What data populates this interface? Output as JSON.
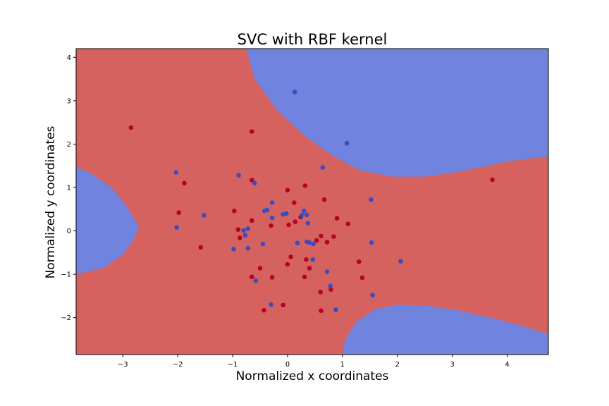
{
  "chart_data": {
    "type": "scatter",
    "title": "SVC with RBF kernel",
    "xlabel": "Normalized x coordinates",
    "ylabel": "Normalized y coordinates",
    "xlim": [
      -3.85,
      4.75
    ],
    "ylim": [
      -2.85,
      4.2
    ],
    "xticks": [
      -3,
      -2,
      -1,
      0,
      1,
      2,
      3,
      4
    ],
    "yticks": [
      -2,
      -1,
      0,
      1,
      2,
      3,
      4
    ],
    "grid": false,
    "legend": "none",
    "colors": {
      "class_0_region": "#d6625f",
      "class_1_region": "#7084df",
      "class_0_points": "#b40426",
      "class_1_points": "#3b4cc0"
    },
    "decision_regions": {
      "class_0": "red background region",
      "class_1": [
        {
          "boundary": [
            [
              -0.75,
              4.2
            ],
            [
              -0.6,
              3.5
            ],
            [
              -0.2,
              2.8
            ],
            [
              0.3,
              2.2
            ],
            [
              0.8,
              1.75
            ],
            [
              1.3,
              1.4
            ],
            [
              1.9,
              1.25
            ],
            [
              2.5,
              1.25
            ],
            [
              3.2,
              1.38
            ],
            [
              4.0,
              1.6
            ],
            [
              4.75,
              1.72
            ],
            [
              4.75,
              4.2
            ]
          ]
        },
        {
          "boundary": [
            [
              -3.85,
              1.48
            ],
            [
              -3.55,
              1.3
            ],
            [
              -3.2,
              1.0
            ],
            [
              -2.95,
              0.6
            ],
            [
              -2.8,
              0.3
            ],
            [
              -2.71,
              0.1
            ],
            [
              -2.8,
              -0.2
            ],
            [
              -3.0,
              -0.55
            ],
            [
              -3.35,
              -0.85
            ],
            [
              -3.85,
              -1.0
            ]
          ]
        },
        {
          "boundary": [
            [
              1.0,
              -2.85
            ],
            [
              1.05,
              -2.5
            ],
            [
              1.25,
              -2.1
            ],
            [
              1.6,
              -1.8
            ],
            [
              2.0,
              -1.7
            ],
            [
              2.5,
              -1.72
            ],
            [
              3.1,
              -1.83
            ],
            [
              3.8,
              -2.03
            ],
            [
              4.3,
              -2.2
            ],
            [
              4.75,
              -2.38
            ],
            [
              4.75,
              -2.85
            ]
          ]
        }
      ]
    },
    "series": [
      {
        "class": 0,
        "points": [
          [
            -2.85,
            2.38
          ],
          [
            -0.65,
            2.29
          ],
          [
            -1.88,
            1.1
          ],
          [
            -0.65,
            1.17
          ],
          [
            -1.98,
            0.42
          ],
          [
            -1.58,
            -0.38
          ],
          [
            -0.97,
            0.46
          ],
          [
            -0.9,
            0.03
          ],
          [
            -0.87,
            -0.16
          ],
          [
            -0.65,
            0.24
          ],
          [
            -0.5,
            -0.86
          ],
          [
            -0.43,
            -1.83
          ],
          [
            -0.3,
            0.12
          ],
          [
            -0.28,
            -1.07
          ],
          [
            -0.65,
            -1.06
          ],
          [
            -0.08,
            -1.71
          ],
          [
            0.0,
            0.94
          ],
          [
            0.02,
            0.14
          ],
          [
            0.0,
            -0.77
          ],
          [
            0.06,
            -0.6
          ],
          [
            0.12,
            0.65
          ],
          [
            0.14,
            0.21
          ],
          [
            0.24,
            0.32
          ],
          [
            0.32,
            1.04
          ],
          [
            0.31,
            -1.06
          ],
          [
            0.34,
            -0.66
          ],
          [
            0.4,
            -0.86
          ],
          [
            0.53,
            -0.22
          ],
          [
            0.61,
            -0.12
          ],
          [
            0.6,
            -1.41
          ],
          [
            0.61,
            -1.84
          ],
          [
            0.67,
            0.72
          ],
          [
            0.72,
            -0.26
          ],
          [
            0.79,
            -1.35
          ],
          [
            0.84,
            -0.13
          ],
          [
            0.9,
            0.29
          ],
          [
            1.1,
            0.16
          ],
          [
            1.3,
            -0.71
          ],
          [
            1.36,
            -1.08
          ],
          [
            3.73,
            1.18
          ]
        ]
      },
      {
        "class": 1,
        "points": [
          [
            0.13,
            3.2
          ],
          [
            1.08,
            2.02
          ],
          [
            -2.03,
            1.35
          ],
          [
            -0.89,
            1.28
          ],
          [
            -0.6,
            1.1
          ],
          [
            -1.52,
            0.36
          ],
          [
            -2.02,
            0.08
          ],
          [
            -0.8,
            0.01
          ],
          [
            -0.72,
            0.05
          ],
          [
            -0.77,
            -0.1
          ],
          [
            -0.72,
            -0.4
          ],
          [
            -0.98,
            -0.42
          ],
          [
            -0.45,
            -0.3
          ],
          [
            -0.42,
            0.46
          ],
          [
            -0.37,
            0.48
          ],
          [
            -0.28,
            0.65
          ],
          [
            -0.28,
            0.3
          ],
          [
            -0.08,
            0.38
          ],
          [
            -0.02,
            0.4
          ],
          [
            0.18,
            -0.28
          ],
          [
            0.26,
            0.36
          ],
          [
            0.3,
            0.46
          ],
          [
            0.35,
            0.37
          ],
          [
            0.37,
            0.18
          ],
          [
            0.35,
            -0.25
          ],
          [
            0.4,
            -0.27
          ],
          [
            0.47,
            -0.3
          ],
          [
            0.46,
            -0.66
          ],
          [
            0.64,
            1.46
          ],
          [
            0.72,
            -0.94
          ],
          [
            0.78,
            -1.27
          ],
          [
            0.88,
            -1.82
          ],
          [
            -0.3,
            -1.7
          ],
          [
            -0.58,
            -1.15
          ],
          [
            1.52,
            0.72
          ],
          [
            1.53,
            -0.27
          ],
          [
            1.55,
            -1.48
          ],
          [
            2.06,
            -0.7
          ]
        ]
      }
    ]
  }
}
